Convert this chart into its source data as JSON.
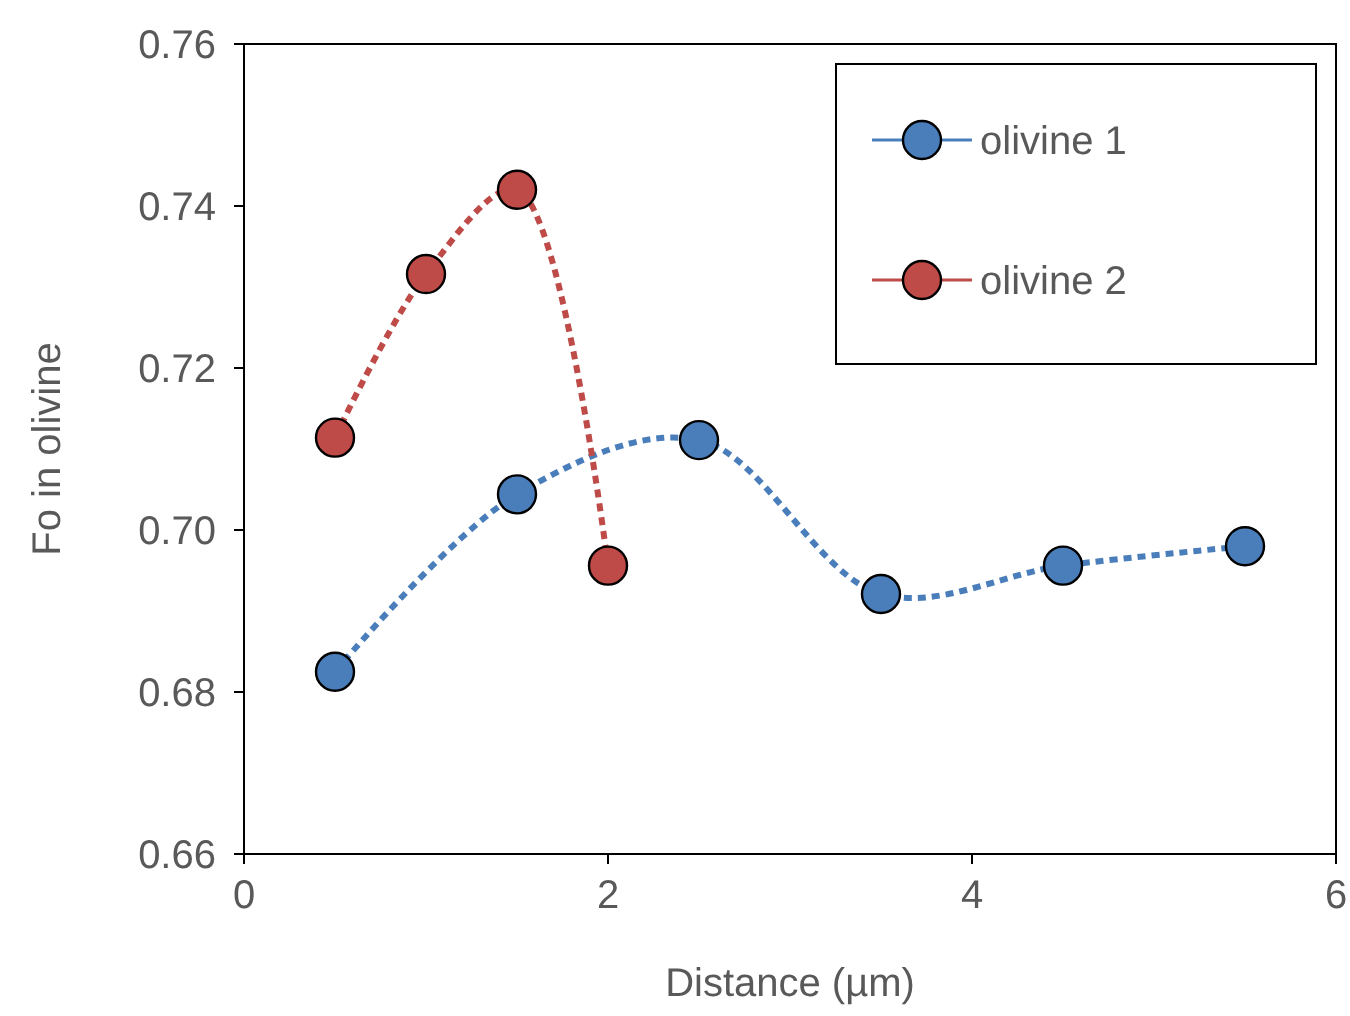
{
  "chart_data": {
    "type": "line",
    "xlabel": "Distance (µm)",
    "ylabel": "Fo in olivine",
    "xlim": [
      0,
      6
    ],
    "xticks": [
      0,
      2,
      4,
      6
    ],
    "ylim": [
      0.66,
      0.76
    ],
    "yticks": [
      {
        "value": 0.66,
        "label": "0.66"
      },
      {
        "value": 0.68,
        "label": "0.68"
      },
      {
        "value": 0.7,
        "label": "0.70"
      },
      {
        "value": 0.72,
        "label": "0.72"
      },
      {
        "value": 0.74,
        "label": "0.74"
      },
      {
        "value": 0.76,
        "label": "0.76"
      }
    ],
    "grid": false,
    "legend": "top right",
    "marker": "circle",
    "line_style": "dotted",
    "series": [
      {
        "name": "olivine 1",
        "color": "#4a7ebb",
        "x": [
          0.5,
          1.5,
          2.5,
          3.5,
          4.5,
          5.5
        ],
        "values": [
          0.6825,
          0.7044,
          0.7111,
          0.6921,
          0.6956,
          0.698
        ]
      },
      {
        "name": "olivine 2",
        "color": "#be4b48",
        "x": [
          0.5,
          1,
          1.5,
          2
        ],
        "values": [
          0.7114,
          0.7316,
          0.742,
          0.6956
        ]
      }
    ]
  }
}
